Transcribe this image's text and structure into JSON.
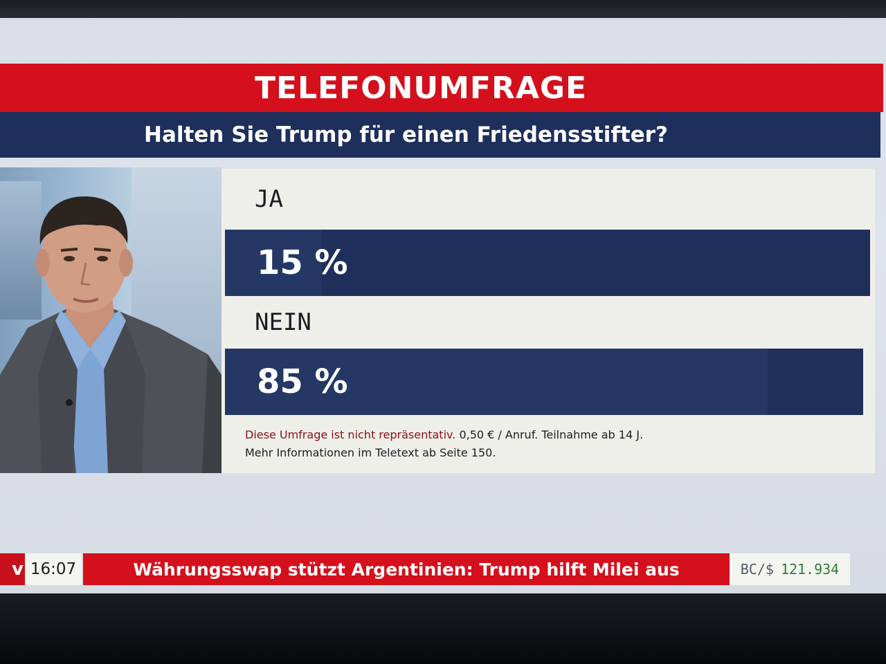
{
  "header": {
    "title": "TELEFONUMFRAGE",
    "question": "Halten Sie Trump für einen Friedensstifter?"
  },
  "poll": {
    "options": [
      {
        "label": "JA",
        "value_text": "15 %",
        "percent": 15
      },
      {
        "label": "NEIN",
        "value_text": "85 %",
        "percent": 85
      }
    ],
    "disclaimer_red": "Diese Umfrage ist nicht repräsentativ.",
    "disclaimer_rest": "0,50 € / Anruf. Teilnahme ab 14 J.",
    "disclaimer_line2": "Mehr Informationen im Teletext ab Seite 150."
  },
  "ticker": {
    "channel_logo": "v",
    "time": "16:07",
    "headline": "Währungsswap stützt Argentinien: Trump hilft Milei aus",
    "rate_symbol": "BC/$",
    "rate_value": "121.934"
  },
  "colors": {
    "brand_red": "#d4101c",
    "navy": "#1e2f5c",
    "panel": "#efefea",
    "rate_green": "#2f7d3a"
  }
}
